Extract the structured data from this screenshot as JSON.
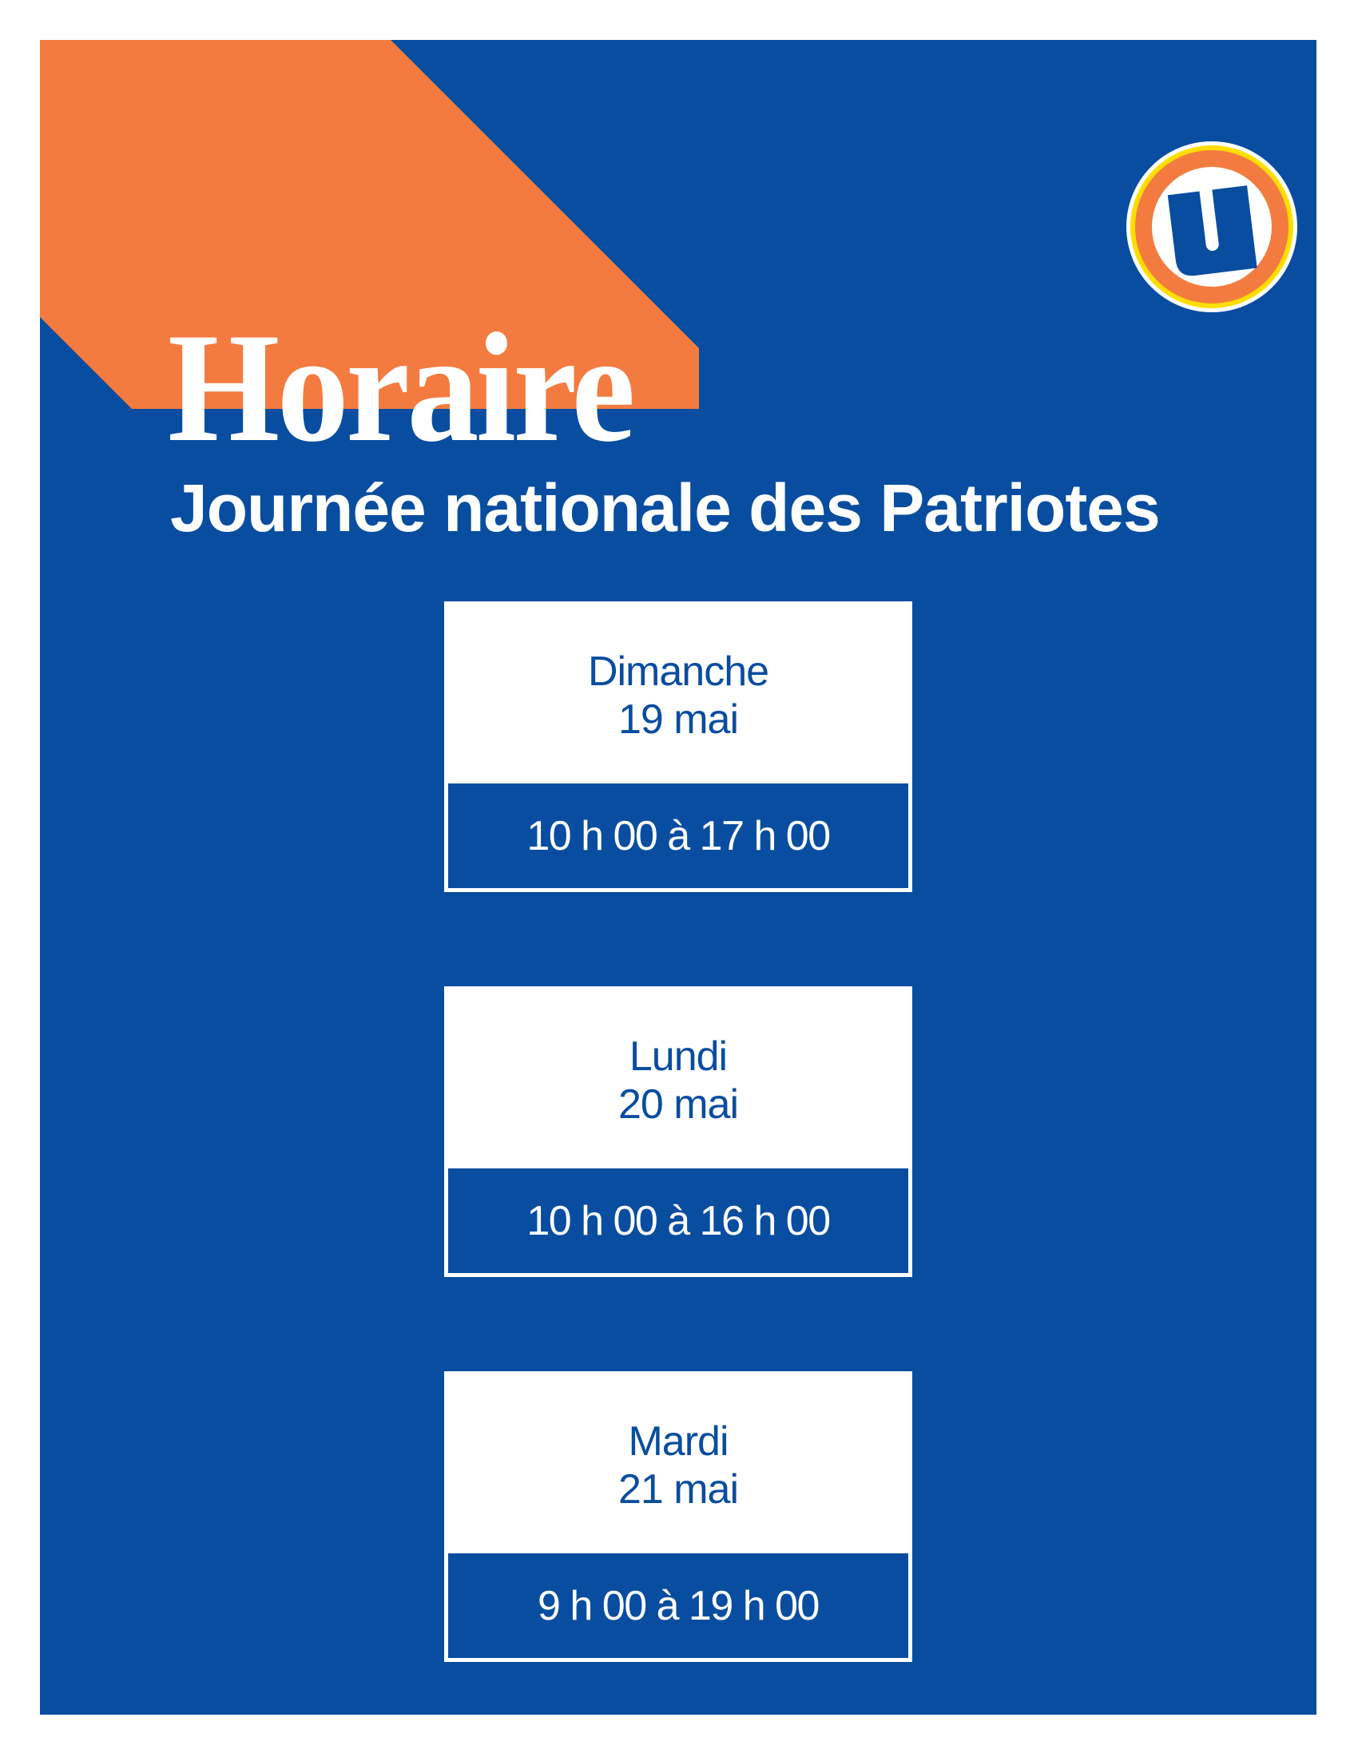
{
  "colors": {
    "blue": "#094DA0",
    "orange": "#F47B40",
    "yellow": "#FFDE00",
    "white": "#FFFFFF"
  },
  "logo": {
    "letter": "U",
    "icon": "store-logo-icon"
  },
  "title": "Horaire",
  "subtitle": "Journée nationale des Patriotes",
  "schedule": [
    {
      "day": "Dimanche",
      "date": "19 mai",
      "hours": "10 h 00 à 17 h 00"
    },
    {
      "day": "Lundi",
      "date": "20 mai",
      "hours": "10 h 00 à 16 h 00"
    },
    {
      "day": "Mardi",
      "date": "21 mai",
      "hours": "9 h 00 à 19 h 00"
    }
  ]
}
